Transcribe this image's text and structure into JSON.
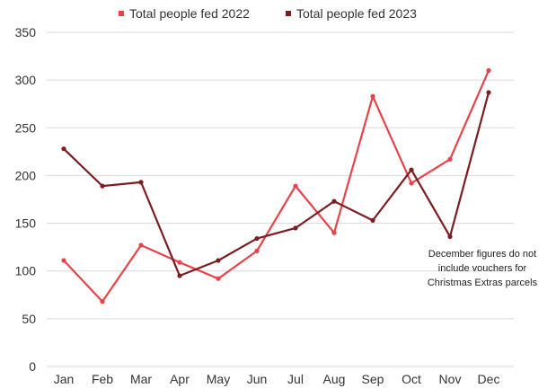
{
  "chart_data": {
    "type": "line",
    "title": "",
    "xlabel": "",
    "ylabel": "",
    "categories": [
      "Jan",
      "Feb",
      "Mar",
      "Apr",
      "May",
      "Jun",
      "Jul",
      "Aug",
      "Sep",
      "Oct",
      "Nov",
      "Dec"
    ],
    "ylim": [
      0,
      350
    ],
    "yticks": [
      "0",
      "50",
      "100",
      "150",
      "200",
      "250",
      "300",
      "350"
    ],
    "grid": true,
    "legend_position": "top",
    "series": [
      {
        "name": "Total people fed 2022",
        "color": "#e8434b",
        "values": [
          111,
          68,
          127,
          109,
          92,
          121,
          189,
          140,
          283,
          192,
          217,
          310
        ]
      },
      {
        "name": "Total people fed 2023",
        "color": "#7b1d22",
        "values": [
          228,
          189,
          193,
          95,
          111,
          134,
          145,
          173,
          153,
          206,
          136,
          287
        ]
      }
    ],
    "annotation": {
      "lines": [
        "December figures do not",
        "include vouchers for",
        "Christmas Extras parcels"
      ]
    }
  }
}
